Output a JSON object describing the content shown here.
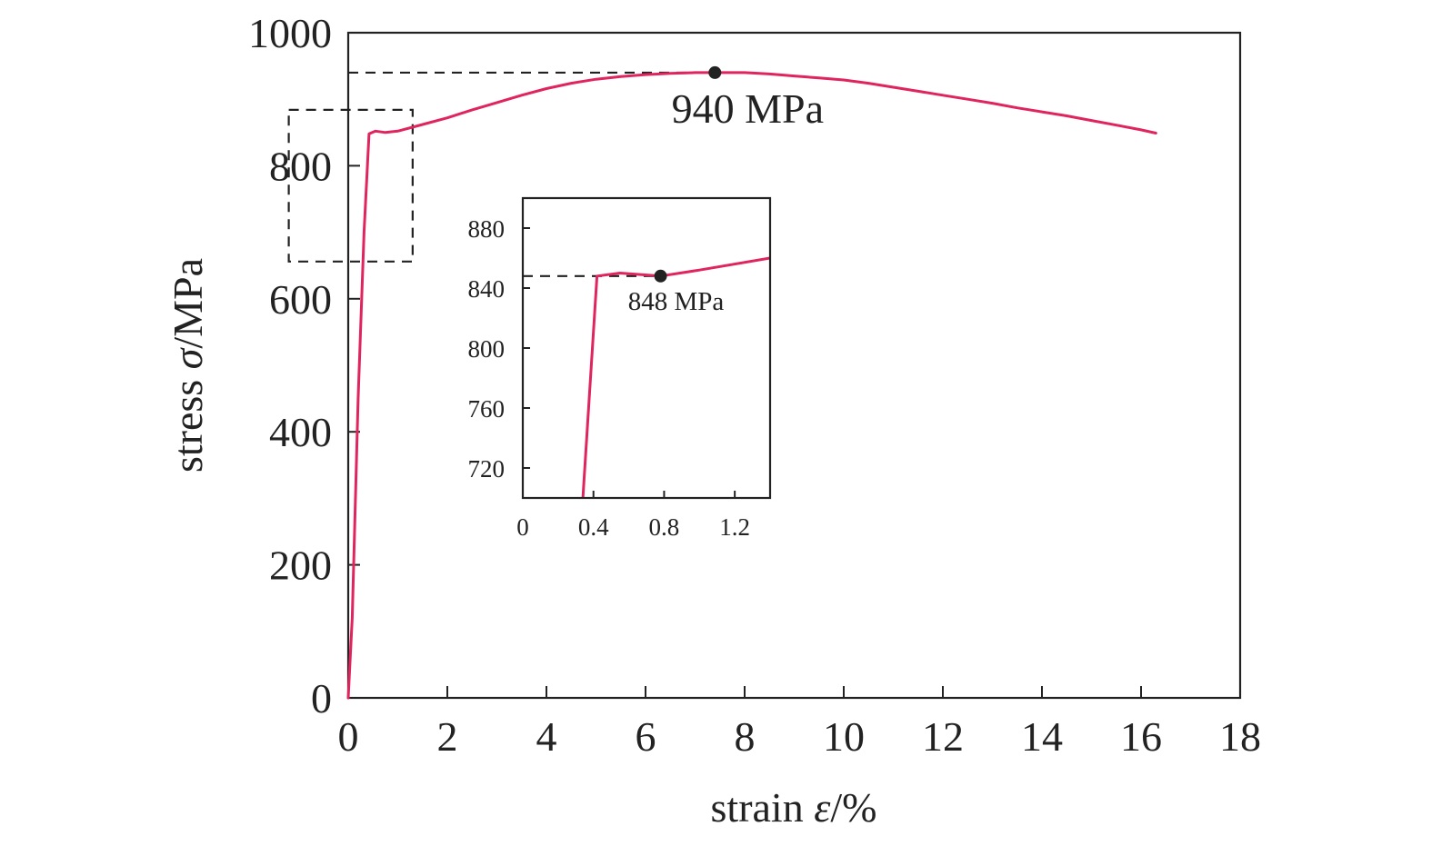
{
  "chart_data": [
    {
      "id": "main",
      "type": "line",
      "xlabel_text": "strain ",
      "xlabel_symbol": "ε",
      "xlabel_unit": "/%",
      "ylabel_text": "stress ",
      "ylabel_symbol": "σ",
      "ylabel_unit": "/MPa",
      "xlim": [
        0,
        18
      ],
      "ylim": [
        0,
        1000
      ],
      "xticks": [
        0,
        2,
        4,
        6,
        8,
        10,
        12,
        14,
        16,
        18
      ],
      "yticks": [
        0,
        200,
        400,
        600,
        800,
        1000
      ],
      "grid": false,
      "series": [
        {
          "color": "#e0245e",
          "points": [
            [
              0,
              0
            ],
            [
              0.08,
              120
            ],
            [
              0.2,
              450
            ],
            [
              0.32,
              700
            ],
            [
              0.42,
              848
            ],
            [
              0.55,
              852
            ],
            [
              0.75,
              850
            ],
            [
              1.0,
              852
            ],
            [
              1.5,
              862
            ],
            [
              2.0,
              872
            ],
            [
              2.5,
              884
            ],
            [
              3.0,
              895
            ],
            [
              3.5,
              906
            ],
            [
              4.0,
              916
            ],
            [
              4.5,
              924
            ],
            [
              5.0,
              930
            ],
            [
              5.5,
              934
            ],
            [
              6.0,
              937
            ],
            [
              6.5,
              939
            ],
            [
              7.0,
              940
            ],
            [
              7.4,
              940
            ],
            [
              8.0,
              940
            ],
            [
              8.5,
              938
            ],
            [
              9.0,
              935
            ],
            [
              9.5,
              932
            ],
            [
              10.0,
              929
            ],
            [
              10.5,
              924
            ],
            [
              11.0,
              918
            ],
            [
              11.5,
              912
            ],
            [
              12.0,
              906
            ],
            [
              12.5,
              900
            ],
            [
              13.0,
              894
            ],
            [
              13.5,
              887
            ],
            [
              14.0,
              881
            ],
            [
              14.5,
              875
            ],
            [
              15.0,
              868
            ],
            [
              15.5,
              861
            ],
            [
              16.0,
              854
            ],
            [
              16.3,
              849
            ]
          ]
        }
      ],
      "annotations": [
        {
          "label": "940 MPa",
          "x": 7.4,
          "y": 940
        }
      ],
      "zoom_box": {
        "x": [
          -1.2,
          1.3
        ],
        "y": [
          656,
          884
        ]
      }
    },
    {
      "id": "inset",
      "type": "line",
      "xlim": [
        0,
        1.4
      ],
      "ylim": [
        700,
        900
      ],
      "xticks": [
        0,
        0.4,
        0.8,
        1.2
      ],
      "xtick_labels": [
        "0",
        "0.4",
        "0.8",
        "1.2"
      ],
      "yticks": [
        720,
        760,
        800,
        840,
        880
      ],
      "grid": false,
      "series": [
        {
          "color": "#e0245e",
          "points": [
            [
              0.34,
              700
            ],
            [
              0.42,
              848
            ],
            [
              0.55,
              850
            ],
            [
              0.78,
              848
            ],
            [
              1.0,
              852
            ],
            [
              1.4,
              860
            ]
          ]
        }
      ],
      "annotations": [
        {
          "label": "848 MPa",
          "x": 0.78,
          "y": 848
        }
      ]
    }
  ]
}
